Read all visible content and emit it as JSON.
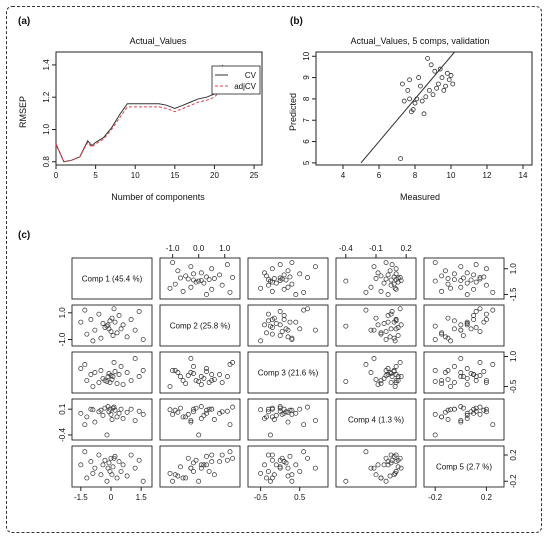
{
  "panel_labels": [
    "(a)",
    "(b)",
    "(c)"
  ],
  "chart_data": [
    {
      "type": "line",
      "panel": "(a)",
      "title": "Actual_Values",
      "xlabel": "Number of components",
      "ylabel": "RMSEP",
      "xlim": [
        0,
        26
      ],
      "ylim": [
        0.78,
        1.48
      ],
      "x_ticks": [
        0,
        5,
        10,
        15,
        20,
        25
      ],
      "y_ticks": [
        0.8,
        1.0,
        1.2,
        1.4
      ],
      "legend_position": "top-right",
      "series": [
        {
          "name": "CV",
          "line_style": "solid",
          "color": "#333333",
          "x": [
            0,
            1,
            2,
            3,
            4,
            4.5,
            5,
            6,
            7,
            8,
            9,
            10,
            11,
            12,
            13,
            14,
            15,
            16,
            17,
            18,
            19,
            20,
            20.5,
            21
          ],
          "y": [
            0.91,
            0.8,
            0.81,
            0.83,
            0.93,
            0.9,
            0.92,
            0.95,
            1.01,
            1.09,
            1.16,
            1.16,
            1.16,
            1.16,
            1.16,
            1.15,
            1.13,
            1.15,
            1.17,
            1.19,
            1.2,
            1.22,
            1.25,
            1.4
          ]
        },
        {
          "name": "adjCV",
          "line_style": "dashed",
          "color": "#e04050",
          "x": [
            0,
            1,
            2,
            3,
            4,
            4.5,
            5,
            6,
            7,
            8,
            9,
            10,
            11,
            12,
            13,
            14,
            15,
            16,
            17,
            18,
            19,
            20,
            20.5,
            21
          ],
          "y": [
            0.91,
            0.8,
            0.81,
            0.83,
            0.92,
            0.89,
            0.91,
            0.94,
            1.0,
            1.07,
            1.14,
            1.14,
            1.14,
            1.14,
            1.14,
            1.13,
            1.11,
            1.13,
            1.15,
            1.17,
            1.18,
            1.2,
            1.23,
            1.38
          ]
        }
      ]
    },
    {
      "type": "scatter",
      "panel": "(b)",
      "title": "Actual_Values, 5 comps, validation",
      "xlabel": "Measured",
      "ylabel": "Predicted",
      "xlim": [
        2.5,
        14.5
      ],
      "ylim": [
        4.9,
        10.2
      ],
      "x_ticks": [
        4,
        6,
        8,
        10,
        12,
        14
      ],
      "y_ticks": [
        5,
        6,
        7,
        8,
        9,
        10
      ],
      "reference_line": {
        "x": [
          5.0,
          10.2
        ],
        "y": [
          5.0,
          10.2
        ]
      },
      "points": [
        [
          7.2,
          5.2
        ],
        [
          7.3,
          8.7
        ],
        [
          7.4,
          7.9
        ],
        [
          7.6,
          8.4
        ],
        [
          7.7,
          8.0
        ],
        [
          7.8,
          7.4
        ],
        [
          7.9,
          7.5
        ],
        [
          7.7,
          8.9
        ],
        [
          8.0,
          7.8
        ],
        [
          8.1,
          8.0
        ],
        [
          8.2,
          9.0
        ],
        [
          8.3,
          8.6
        ],
        [
          8.5,
          7.3
        ],
        [
          8.6,
          8.1
        ],
        [
          8.8,
          8.4
        ],
        [
          8.7,
          9.9
        ],
        [
          8.9,
          9.6
        ],
        [
          9.0,
          8.2
        ],
        [
          9.2,
          8.5
        ],
        [
          9.1,
          9.3
        ],
        [
          9.3,
          8.7
        ],
        [
          9.5,
          9.0
        ],
        [
          9.6,
          8.4
        ],
        [
          9.7,
          8.6
        ],
        [
          9.8,
          9.2
        ],
        [
          9.9,
          8.9
        ],
        [
          10.0,
          9.1
        ],
        [
          10.1,
          8.7
        ],
        [
          9.4,
          9.4
        ],
        [
          8.4,
          7.9
        ]
      ]
    },
    {
      "type": "scatter-matrix",
      "panel": "(c)",
      "labels": [
        "Comp 1 (45.4 %)",
        "Comp 2 (25.8 %)",
        "Comp 3 (21.6 %)",
        "Comp 4 (1.3 %)",
        "Comp 5 (2.7 %)"
      ],
      "axis_ticks": {
        "top": [
          {
            "col": 1,
            "ticks": [
              -1.0,
              0.0,
              1.0
            ],
            "labels": [
              "-1.0",
              "0.0",
              "1.0"
            ]
          },
          {
            "col": 3,
            "ticks": [
              -0.4,
              -0.1,
              0.2
            ],
            "labels": [
              "-0.4",
              "-0.1",
              "0.2"
            ]
          }
        ],
        "bottom": [
          {
            "col": 0,
            "ticks": [
              -1.5,
              0.0,
              1.5
            ],
            "labels": [
              "-1.5",
              "0",
              "1.5"
            ]
          },
          {
            "col": 2,
            "ticks": [
              -0.5,
              0.5
            ],
            "labels": [
              "-0.5",
              "0.5"
            ]
          },
          {
            "col": 4,
            "ticks": [
              -0.2,
              0.2
            ],
            "labels": [
              "-0.2",
              "0.2"
            ]
          }
        ],
        "left": [
          {
            "row": 1,
            "ticks": [
              -1.0,
              1.0
            ],
            "labels": [
              "-1.0",
              "1.0"
            ]
          },
          {
            "row": 3,
            "ticks": [
              -0.4,
              0.1
            ],
            "labels": [
              "-0.4",
              "0.1"
            ]
          }
        ],
        "right": [
          {
            "row": 0,
            "ticks": [
              -1.5,
              1.0
            ],
            "labels": [
              "-1.5",
              "1.0"
            ]
          },
          {
            "row": 2,
            "ticks": [
              -0.5,
              1.0
            ],
            "labels": [
              "-0.5",
              "1.0"
            ]
          },
          {
            "row": 4,
            "ticks": [
              -0.2,
              0.2
            ],
            "labels": [
              "-0.2",
              "0.2"
            ]
          }
        ]
      },
      "ranges": [
        [
          -1.7,
          1.8
        ],
        [
          -1.3,
          1.4
        ],
        [
          -0.7,
          1.1
        ],
        [
          -0.45,
          0.25
        ],
        [
          -0.25,
          0.3
        ]
      ],
      "scores": [
        [
          -1.5,
          0.3,
          0.4,
          0.02,
          0.05
        ],
        [
          -1.2,
          -0.6,
          -0.2,
          -0.05,
          -0.15
        ],
        [
          -1.0,
          0.5,
          0.1,
          0.1,
          0.1
        ],
        [
          -0.8,
          -0.3,
          0.2,
          -0.15,
          0.0
        ],
        [
          -0.6,
          0.9,
          -0.3,
          0.05,
          0.2
        ],
        [
          -0.5,
          -0.9,
          0.3,
          0.08,
          -0.1
        ],
        [
          -0.4,
          0.2,
          -0.1,
          -0.02,
          0.05
        ],
        [
          -0.3,
          -0.1,
          -0.2,
          0.12,
          0.12
        ],
        [
          -0.2,
          0.0,
          -0.25,
          -0.4,
          -0.2
        ],
        [
          -0.15,
          0.1,
          0.0,
          0.15,
          0.0
        ],
        [
          -0.1,
          -0.2,
          0.15,
          0.05,
          0.08
        ],
        [
          -0.05,
          0.4,
          -0.3,
          0.1,
          -0.05
        ],
        [
          0.0,
          -0.4,
          0.05,
          0.0,
          0.15
        ],
        [
          0.05,
          0.6,
          -0.15,
          -0.1,
          -0.1
        ],
        [
          0.1,
          -0.7,
          0.0,
          0.12,
          0.02
        ],
        [
          0.2,
          0.3,
          0.25,
          0.08,
          0.18
        ],
        [
          0.3,
          -0.5,
          -0.35,
          -0.05,
          -0.15
        ],
        [
          0.4,
          0.8,
          0.1,
          0.02,
          0.1
        ],
        [
          0.5,
          -0.2,
          0.5,
          0.1,
          -0.05
        ],
        [
          0.6,
          0.1,
          -0.4,
          -0.08,
          0.05
        ],
        [
          0.8,
          -0.8,
          0.2,
          0.04,
          -0.12
        ],
        [
          1.0,
          0.5,
          -0.2,
          0.1,
          0.2
        ],
        [
          1.2,
          -0.3,
          0.9,
          -0.12,
          0.0
        ],
        [
          1.4,
          1.1,
          0.0,
          0.06,
          0.12
        ],
        [
          1.6,
          -1.0,
          0.3,
          0.0,
          -0.2
        ],
        [
          -1.3,
          1.2,
          0.6,
          -0.2,
          0.25
        ],
        [
          -0.9,
          -1.1,
          -0.5,
          0.09,
          -0.08
        ],
        [
          0.15,
          1.3,
          0.7,
          0.14,
          0.15
        ]
      ]
    }
  ]
}
